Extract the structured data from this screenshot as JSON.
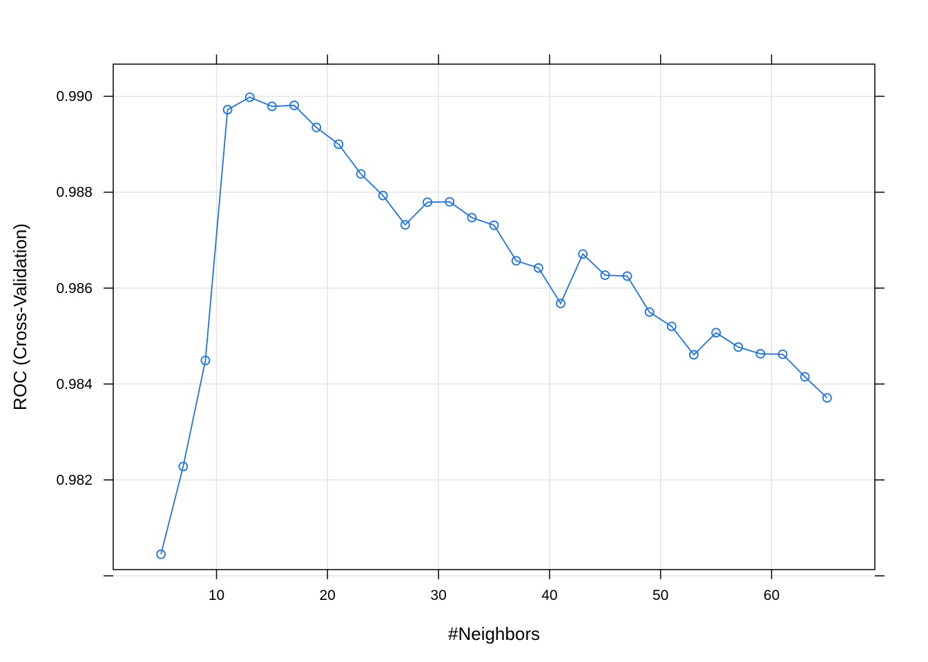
{
  "chart_data": {
    "type": "line",
    "title": "",
    "xlabel": "#Neighbors",
    "ylabel": "ROC (Cross-Validation)",
    "xlim": [
      0.7,
      69.3
    ],
    "ylim": [
      0.98013,
      0.99067
    ],
    "x_ticks": [
      10,
      20,
      30,
      40,
      50,
      60
    ],
    "x_tick_labels": [
      "10",
      "20",
      "30",
      "40",
      "50",
      "60"
    ],
    "y_ticks": [
      0.98,
      0.982,
      0.984,
      0.986,
      0.988,
      0.99
    ],
    "y_tick_labels": [
      "",
      "0.982",
      "0.984",
      "0.986",
      "0.988",
      "0.990"
    ],
    "grid": true,
    "series": [
      {
        "color": "#1a73e8",
        "marker": "open-circle",
        "x": [
          5,
          7,
          9,
          11,
          13,
          15,
          17,
          19,
          21,
          23,
          25,
          27,
          29,
          31,
          33,
          35,
          37,
          39,
          41,
          43,
          45,
          47,
          49,
          51,
          53,
          55,
          57,
          59,
          61,
          63,
          65
        ],
        "values": [
          0.98045,
          0.98228,
          0.98449,
          0.98972,
          0.98998,
          0.98979,
          0.98981,
          0.98935,
          0.989,
          0.98838,
          0.98793,
          0.98732,
          0.98779,
          0.9878,
          0.98747,
          0.98731,
          0.98657,
          0.98642,
          0.98568,
          0.98671,
          0.98627,
          0.98625,
          0.9855,
          0.9852,
          0.98461,
          0.98507,
          0.98477,
          0.98463,
          0.98462,
          0.98415,
          0.98371
        ]
      }
    ]
  }
}
